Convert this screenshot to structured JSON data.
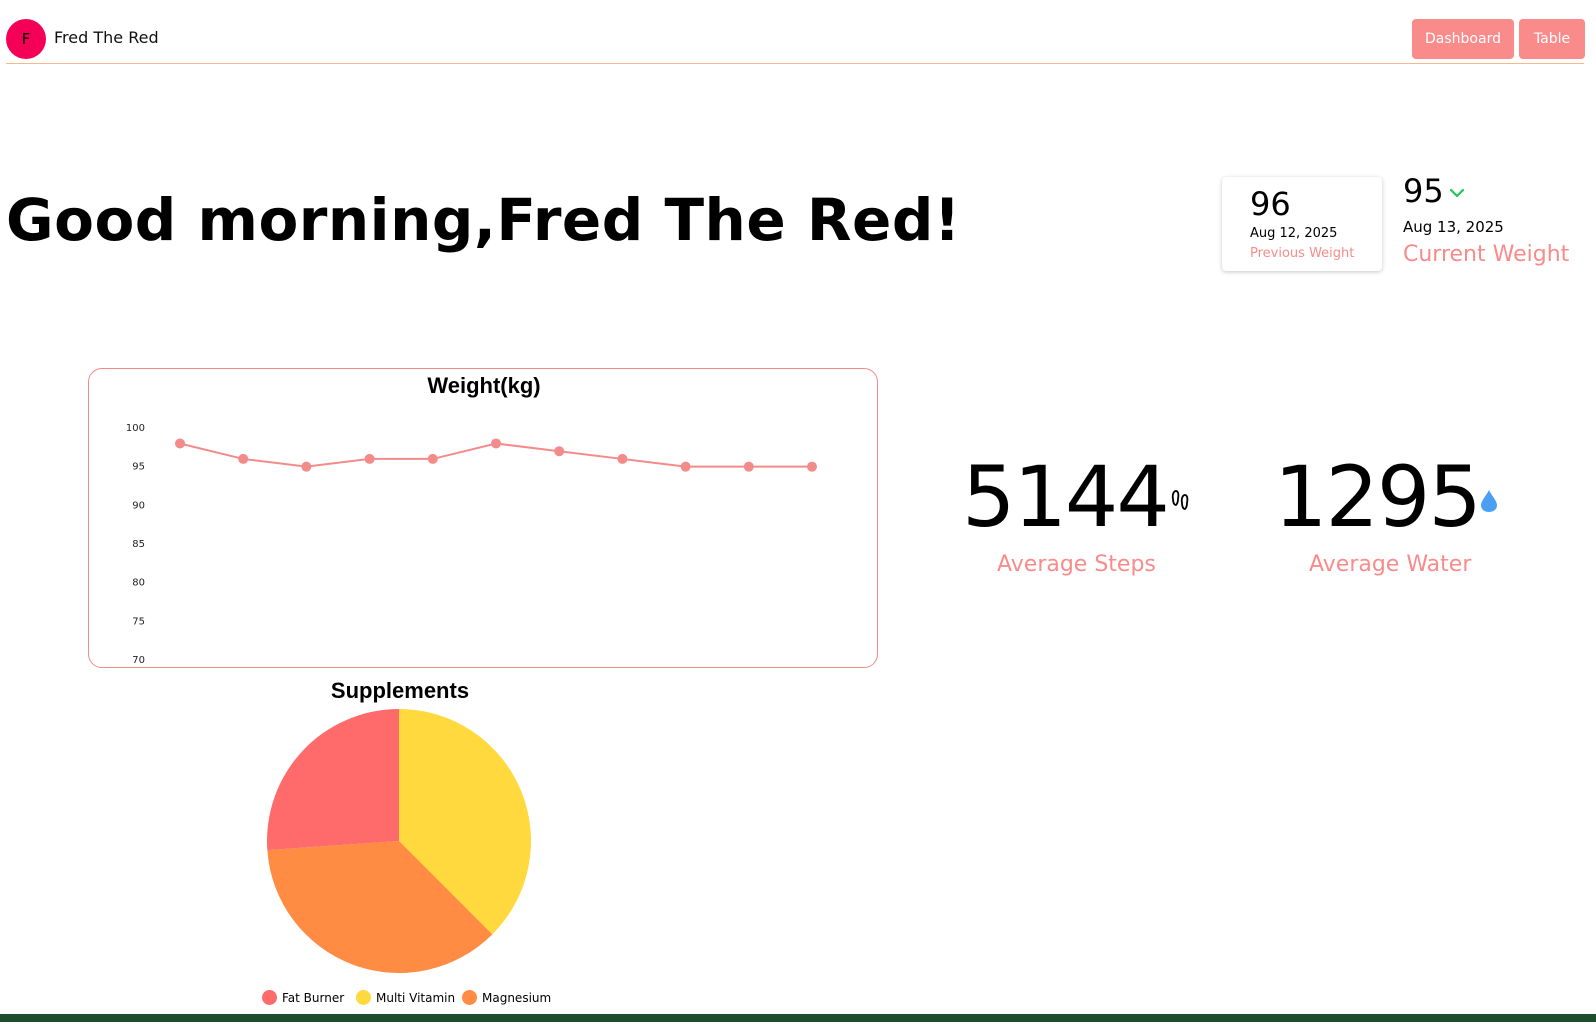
{
  "navbar": {
    "avatar_initial": "F",
    "user_name": "Fred The Red",
    "buttons": {
      "dashboard": "Dashboard",
      "table": "Table"
    }
  },
  "greeting": "Good morning,Fred The Red!",
  "previous_weight": {
    "value": "96",
    "date": "Aug 12, 2025",
    "label": "Previous Weight"
  },
  "current_weight": {
    "value": "95",
    "date": "Aug 13, 2025",
    "label": "Current Weight",
    "trend_icon": "chevron-down-icon",
    "trend_color": "#22c55e"
  },
  "stats": {
    "steps": {
      "value": "5144",
      "label": "Average Steps",
      "icon": "footprints-icon"
    },
    "water": {
      "value": "1295",
      "label": "Average Water",
      "icon": "water-drop-icon",
      "icon_color": "#4a9ff5"
    }
  },
  "colors": {
    "accent": "#f98b8b",
    "avatar": "#f50057",
    "divider": "#f4b98c",
    "footer": "#1e4d2b"
  },
  "chart_data": [
    {
      "type": "line",
      "title": "Weight(kg)",
      "xlabel": "",
      "ylabel": "",
      "ylim": [
        70,
        100
      ],
      "yticks": [
        100,
        95,
        90,
        85,
        80,
        75,
        70
      ],
      "grid": false,
      "color": "#f48b8b",
      "values": [
        98,
        96,
        95,
        96,
        96,
        98,
        97,
        96,
        95,
        95,
        95
      ]
    },
    {
      "type": "pie",
      "title": "Supplements",
      "legend": "bottom",
      "slices": [
        {
          "label": "Fat Burner",
          "value": 26.1,
          "color": "#ff6b6b"
        },
        {
          "label": "Multi Vitamin",
          "value": 37.5,
          "color": "#ffd93d"
        },
        {
          "label": "Magnesium",
          "value": 36.4,
          "color": "#ff8c42"
        }
      ]
    }
  ]
}
